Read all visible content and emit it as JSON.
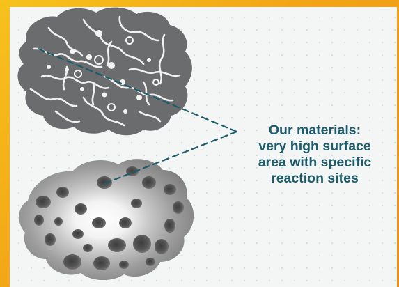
{
  "caption": {
    "lines": [
      "Our materials:",
      "very high surface",
      "area with specific",
      "reaction sites"
    ]
  },
  "colors": {
    "background_accent": "#f2a516",
    "panel": "#f4f5f5",
    "caption_text": "#1d5c6b",
    "particle_dark": "#606264",
    "particle_light": "#ffffff"
  },
  "icons": [
    "porous-particle-illustration",
    "spherical-particle-illustration",
    "dashed-pointer-line"
  ]
}
